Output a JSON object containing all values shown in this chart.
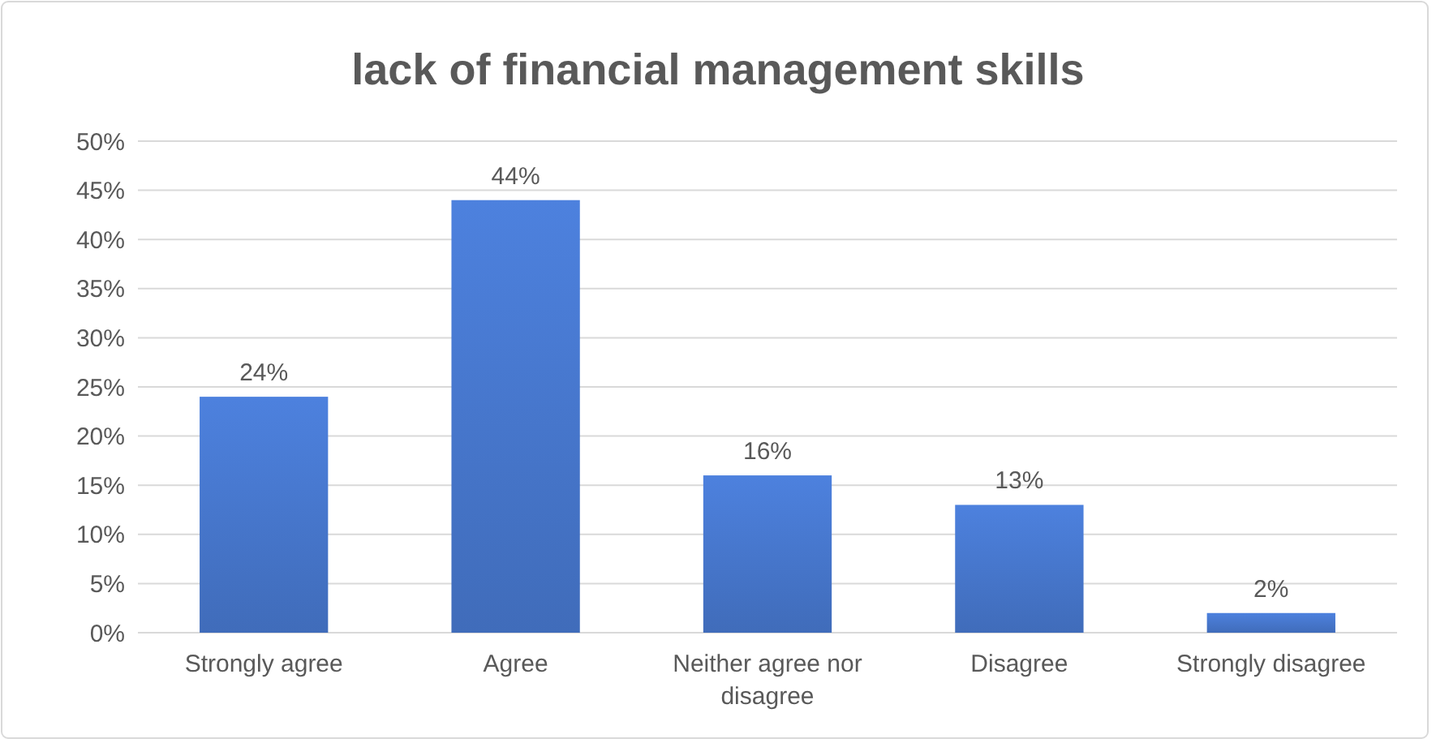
{
  "chart_data": {
    "type": "bar",
    "title": "lack of financial management skills",
    "categories": [
      "Strongly agree",
      "Agree",
      "Neither agree nor disagree",
      "Disagree",
      "Strongly disagree"
    ],
    "values": [
      24,
      44,
      16,
      13,
      2
    ],
    "color": "#4472c4",
    "ylim": [
      0,
      50
    ],
    "yticks": [
      {
        "value": 0,
        "label": "0%"
      },
      {
        "value": 5,
        "label": "5%"
      },
      {
        "value": 10,
        "label": "10%"
      },
      {
        "value": 15,
        "label": "15%"
      },
      {
        "value": 20,
        "label": "20%"
      },
      {
        "value": 25,
        "label": "25%"
      },
      {
        "value": 30,
        "label": "30%"
      },
      {
        "value": 35,
        "label": "35%"
      },
      {
        "value": 40,
        "label": "40%"
      },
      {
        "value": 45,
        "label": "45%"
      },
      {
        "value": 50,
        "label": "50%"
      }
    ],
    "value_labels": [
      "24%",
      "44%",
      "16%",
      "13%",
      "2%"
    ],
    "grid": "y"
  }
}
